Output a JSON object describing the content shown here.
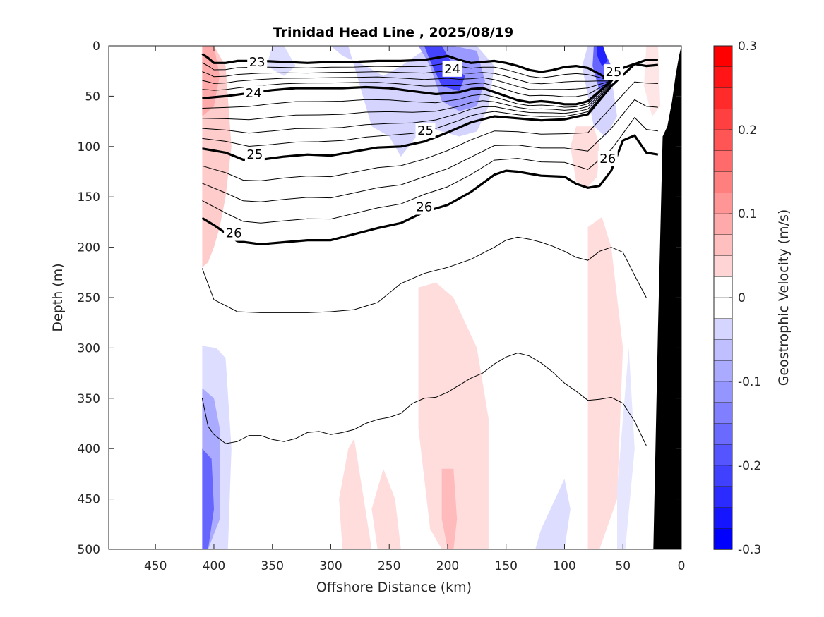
{
  "chart_data": {
    "type": "contour",
    "title": "Trinidad Head Line , 2025/08/19",
    "xlabel": "Offshore Distance (km)",
    "ylabel": "Depth (m)",
    "xlim": [
      490,
      0
    ],
    "ylim": [
      0,
      500
    ],
    "x_reversed": true,
    "y_reversed": true,
    "x_ticks": [
      450,
      400,
      350,
      300,
      250,
      200,
      150,
      100,
      50,
      0
    ],
    "y_ticks": [
      0,
      50,
      100,
      150,
      200,
      250,
      300,
      350,
      400,
      450,
      500
    ],
    "colorbar": {
      "label": "Geostrophic Velocity (m/s)",
      "range": [
        -0.3,
        0.3
      ],
      "ticks": [
        "0.3",
        "0.2",
        "0.1",
        "0",
        "-0.1",
        "-0.2",
        "-0.3"
      ],
      "tick_values": [
        0.3,
        0.2,
        0.1,
        0,
        -0.1,
        -0.2,
        -0.3
      ],
      "levels": 24,
      "positive_color": "#ff0000",
      "negative_color": "#0000ff"
    },
    "density_isopycnals": [
      {
        "label": "23",
        "x": [
          410,
          405,
          400,
          390,
          380,
          360,
          340,
          320,
          300,
          280,
          260,
          240,
          220,
          200,
          190,
          180,
          170,
          160,
          150,
          140,
          130,
          120,
          110,
          100,
          90,
          80,
          70,
          60,
          50,
          40,
          30,
          20
        ],
        "y": [
          8,
          12,
          17,
          17,
          15,
          15,
          16,
          17,
          16,
          16,
          15,
          15,
          14,
          10,
          14,
          17,
          16,
          15,
          17,
          20,
          24,
          26,
          24,
          21,
          20,
          22,
          28,
          35,
          22,
          18,
          20,
          19
        ]
      },
      {
        "label": "24",
        "x": [
          410,
          390,
          370,
          350,
          330,
          310,
          290,
          270,
          250,
          230,
          210,
          190,
          180,
          170,
          160,
          150,
          140,
          130,
          120,
          110,
          100,
          90,
          80,
          70,
          60
        ],
        "y": [
          52,
          50,
          47,
          44,
          42,
          42,
          42,
          41,
          42,
          45,
          48,
          46,
          43,
          42,
          46,
          50,
          54,
          56,
          55,
          56,
          58,
          58,
          55,
          45,
          35
        ]
      },
      {
        "label": "25",
        "x": [
          410,
          390,
          375,
          360,
          340,
          320,
          300,
          280,
          260,
          240,
          220,
          200,
          180,
          160,
          140,
          120,
          100,
          80,
          60,
          40,
          30,
          20
        ],
        "y": [
          102,
          106,
          113,
          113,
          110,
          108,
          109,
          105,
          101,
          100,
          95,
          86,
          76,
          70,
          72,
          74,
          73,
          68,
          40,
          18,
          14,
          14
        ]
      },
      {
        "label": "26",
        "x": [
          410,
          400,
          380,
          360,
          340,
          320,
          300,
          280,
          260,
          240,
          220,
          200,
          180,
          160,
          150,
          140,
          120,
          100,
          90,
          80,
          70,
          60,
          50,
          40,
          30,
          20
        ],
        "y": [
          171,
          178,
          194,
          197,
          195,
          193,
          193,
          187,
          181,
          176,
          165,
          158,
          145,
          128,
          124,
          125,
          129,
          130,
          137,
          141,
          139,
          124,
          94,
          89,
          106,
          108
        ]
      }
    ],
    "contour_labels": [
      {
        "text": "23",
        "x": 363,
        "y": 16
      },
      {
        "text": "24",
        "x": 366,
        "y": 47
      },
      {
        "text": "24",
        "x": 196,
        "y": 23
      },
      {
        "text": "25",
        "x": 58,
        "y": 26
      },
      {
        "text": "25",
        "x": 365,
        "y": 108
      },
      {
        "text": "25",
        "x": 219,
        "y": 84
      },
      {
        "text": "26",
        "x": 383,
        "y": 186
      },
      {
        "text": "26",
        "x": 220,
        "y": 160
      },
      {
        "text": "26",
        "x": 63,
        "y": 112
      }
    ],
    "thin_isopycnals": [
      {
        "x": [
          410,
          400,
          380,
          360,
          340,
          320,
          300,
          280,
          260,
          240,
          220,
          200,
          180,
          160,
          150,
          140,
          130,
          120,
          110,
          100,
          90,
          80,
          70,
          60,
          50,
          40,
          30
        ],
        "y": [
          221,
          252,
          264,
          265,
          265,
          265,
          264,
          262,
          255,
          236,
          226,
          220,
          212,
          200,
          193,
          190,
          192,
          195,
          199,
          204,
          210,
          213,
          204,
          200,
          205,
          228,
          250
        ]
      },
      {
        "x": [
          410,
          405,
          400,
          390,
          380,
          370,
          360,
          350,
          340,
          330,
          320,
          310,
          300,
          290,
          280,
          270,
          260,
          250,
          240,
          230,
          220,
          210,
          200,
          190,
          180,
          170,
          160,
          150,
          140,
          130,
          120,
          110,
          100,
          90,
          80,
          70,
          60,
          50,
          40,
          30
        ],
        "y": [
          350,
          378,
          386,
          395,
          393,
          387,
          387,
          391,
          393,
          390,
          384,
          383,
          386,
          384,
          381,
          375,
          371,
          369,
          365,
          355,
          350,
          349,
          344,
          337,
          330,
          325,
          316,
          309,
          305,
          308,
          315,
          324,
          335,
          343,
          352,
          351,
          349,
          355,
          373,
          397
        ]
      }
    ],
    "velocity_patches": [
      {
        "sign": 1,
        "level": 0.06,
        "x": [
          410,
          400,
          390,
          385,
          390,
          395,
          400,
          405,
          410
        ],
        "y": [
          0,
          0,
          20,
          100,
          150,
          180,
          200,
          215,
          220
        ]
      },
      {
        "sign": 1,
        "level": 0.1,
        "x": [
          410,
          400,
          395,
          400,
          410
        ],
        "y": [
          0,
          0,
          30,
          60,
          70
        ]
      },
      {
        "sign": 1,
        "level": 0.04,
        "x": [
          90,
          75,
          70,
          72,
          80,
          90,
          95
        ],
        "y": [
          80,
          80,
          100,
          130,
          140,
          135,
          100
        ]
      },
      {
        "sign": 1,
        "level": 0.04,
        "x": [
          80,
          68,
          60,
          50,
          55,
          70,
          80
        ],
        "y": [
          180,
          170,
          200,
          300,
          450,
          500,
          500
        ]
      },
      {
        "sign": 1,
        "level": 0.04,
        "x": [
          225,
          210,
          195,
          175,
          165,
          165,
          185,
          205,
          215,
          225
        ],
        "y": [
          240,
          235,
          250,
          300,
          370,
          500,
          500,
          500,
          480,
          380
        ]
      },
      {
        "sign": 1,
        "level": 0.08,
        "x": [
          205,
          195,
          192,
          195,
          200,
          205
        ],
        "y": [
          420,
          420,
          470,
          500,
          500,
          470
        ]
      },
      {
        "sign": 1,
        "level": 0.04,
        "x": [
          280,
          265,
          290,
          293,
          285
        ],
        "y": [
          390,
          500,
          500,
          450,
          400
        ]
      },
      {
        "sign": 1,
        "level": 0.04,
        "x": [
          255,
          245,
          240,
          260,
          265
        ],
        "y": [
          420,
          450,
          500,
          500,
          460
        ]
      },
      {
        "sign": 1,
        "level": 0.03,
        "x": [
          30,
          20,
          18,
          25,
          32
        ],
        "y": [
          0,
          0,
          60,
          70,
          40
        ]
      },
      {
        "sign": -1,
        "level": 0.05,
        "x": [
          300,
          285,
          265,
          250,
          240,
          220,
          190,
          175,
          165,
          160,
          175,
          215,
          240,
          255,
          270,
          290,
          300
        ],
        "y": [
          0,
          0,
          80,
          90,
          110,
          80,
          90,
          85,
          60,
          20,
          0,
          0,
          20,
          30,
          20,
          10,
          0
        ]
      },
      {
        "sign": -1,
        "level": 0.12,
        "x": [
          240,
          225,
          215,
          205,
          190,
          175,
          168,
          175,
          195,
          220,
          235
        ],
        "y": [
          0,
          0,
          20,
          55,
          65,
          60,
          35,
          5,
          0,
          0,
          0
        ]
      },
      {
        "sign": -1,
        "level": 0.22,
        "x": [
          220,
          205,
          195,
          185,
          190,
          205,
          215
        ],
        "y": [
          0,
          0,
          20,
          30,
          45,
          40,
          15
        ]
      },
      {
        "sign": -1,
        "level": 0.05,
        "x": [
          80,
          70,
          60,
          55,
          65,
          75,
          85
        ],
        "y": [
          0,
          0,
          30,
          70,
          90,
          80,
          20
        ]
      },
      {
        "sign": -1,
        "level": 0.18,
        "x": [
          75,
          68,
          60,
          62,
          70,
          76
        ],
        "y": [
          0,
          0,
          20,
          40,
          45,
          20
        ]
      },
      {
        "sign": -1,
        "level": 0.26,
        "x": [
          72,
          67,
          63,
          68,
          72
        ],
        "y": [
          0,
          0,
          15,
          20,
          10
        ]
      },
      {
        "sign": -1,
        "level": 0.04,
        "x": [
          350,
          340,
          330,
          340,
          355
        ],
        "y": [
          0,
          0,
          20,
          30,
          20
        ]
      },
      {
        "sign": -1,
        "level": 0.04,
        "x": [
          410,
          398,
          390,
          385,
          388,
          400,
          410
        ],
        "y": [
          298,
          300,
          310,
          400,
          500,
          500,
          500
        ]
      },
      {
        "sign": -1,
        "level": 0.1,
        "x": [
          410,
          400,
          395,
          395,
          405,
          410
        ],
        "y": [
          340,
          350,
          380,
          470,
          500,
          500
        ]
      },
      {
        "sign": -1,
        "level": 0.18,
        "x": [
          410,
          402,
          400,
          405,
          410
        ],
        "y": [
          400,
          410,
          460,
          500,
          500
        ]
      },
      {
        "sign": -1,
        "level": 0.04,
        "x": [
          120,
          100,
          95,
          100,
          125
        ],
        "y": [
          480,
          430,
          460,
          500,
          500
        ]
      },
      {
        "sign": -1,
        "level": 0.03,
        "x": [
          55,
          45,
          40,
          48,
          55
        ],
        "y": [
          440,
          300,
          400,
          500,
          500
        ]
      }
    ],
    "bathymetry_x": [
      0,
      2,
      5,
      8,
      12,
      16,
      20,
      24,
      24,
      0
    ],
    "bathymetry_y": [
      0,
      10,
      30,
      55,
      80,
      90,
      280,
      500,
      500,
      500
    ]
  }
}
